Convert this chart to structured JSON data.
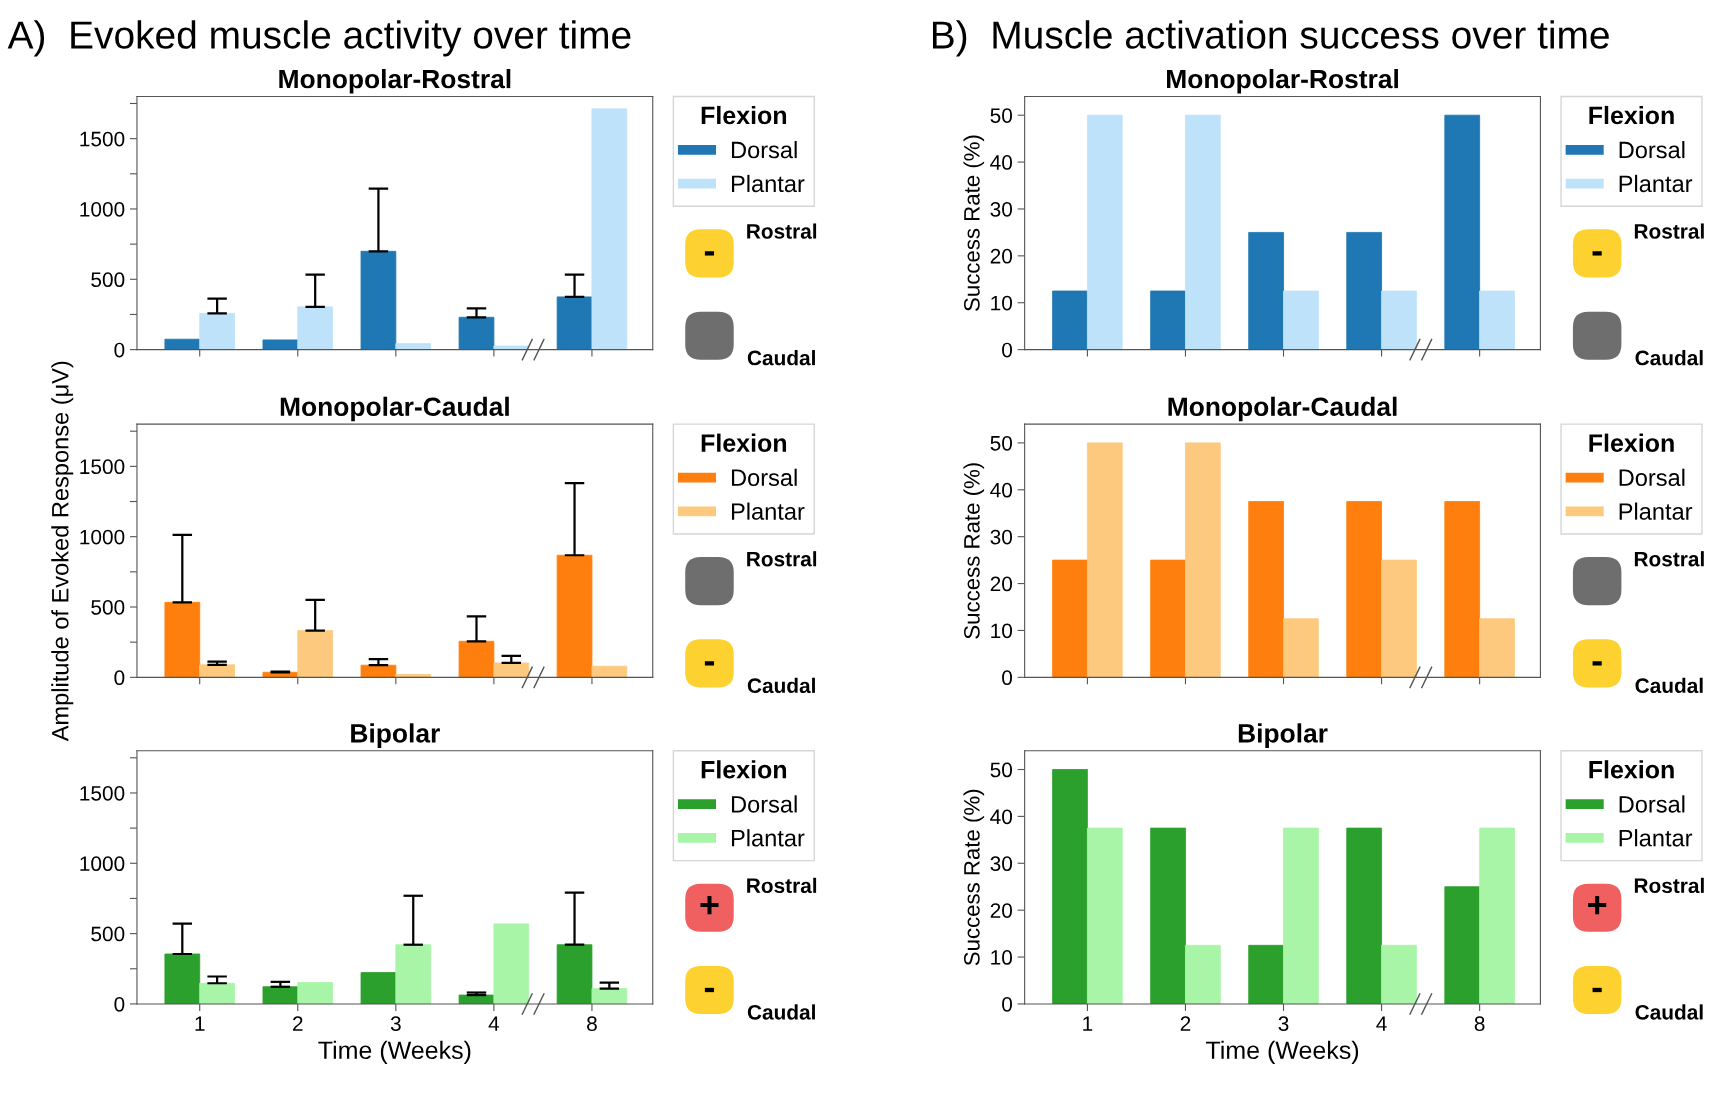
{
  "chart_data": [
    {
      "type": "bar",
      "title": "A)  Evoked muscle activity over time",
      "subtitle": "Monopolar-Rostral",
      "categories": [
        "1",
        "2",
        "3",
        "4",
        "8"
      ],
      "legend_title": "Flexion",
      "legend": "right",
      "tick_labels": "y",
      "ylim": [
        0,
        1800
      ],
      "yticks": [
        0,
        {
          "value": 250,
          "label": null
        },
        500,
        {
          "value": 750,
          "label": null
        },
        1000,
        {
          "value": 1250,
          "label": null
        },
        1500,
        {
          "value": 1750,
          "label": null
        }
      ],
      "series": [
        {
          "name": "Dorsal",
          "color": "#1f77b4",
          "values": [
            74,
            69,
            699,
            230,
            375
          ],
          "errors": [
            null,
            null,
            [
              699,
              1145
            ],
            [
              230,
              293
            ],
            [
              375,
              533
            ]
          ]
        },
        {
          "name": "Plantar",
          "color": "#bfe2fb",
          "values": [
            258,
            304,
            43,
            26,
            1712
          ],
          "errors": [
            [
              258,
              362
            ],
            [
              304,
              533
            ],
            null,
            null,
            null
          ]
        }
      ],
      "annotations": [
        "Rostral",
        "-",
        "Caudal",
        null
      ]
    },
    {
      "type": "bar",
      "title": "Monopolar-Caudal",
      "ylabel": "Amplitude of Evoked Response (μV)",
      "categories": [
        "1",
        "2",
        "3",
        "4",
        "8"
      ],
      "legend_title": "Flexion",
      "legend": "right",
      "tick_labels": "y",
      "ylim": [
        0,
        1800
      ],
      "yticks": [
        0,
        {
          "value": 250,
          "label": null
        },
        500,
        {
          "value": 750,
          "label": null
        },
        1000,
        {
          "value": 1250,
          "label": null
        },
        1500,
        {
          "value": 1750,
          "label": null
        }
      ],
      "series": [
        {
          "name": "Dorsal",
          "color": "#ff7f0e",
          "values": [
            533,
            36,
            86,
            256,
            868
          ],
          "errors": [
            [
              533,
              1013
            ],
            [
              36,
              41
            ],
            [
              86,
              129
            ],
            [
              256,
              434
            ],
            [
              868,
              1381
            ]
          ]
        },
        {
          "name": "Plantar",
          "color": "#fdc97e",
          "values": [
            89,
            332,
            20,
            102,
            79
          ],
          "errors": [
            [
              89,
              112
            ],
            [
              332,
              551
            ],
            null,
            [
              102,
              152
            ],
            null
          ]
        }
      ],
      "annotations": [
        "Rostral",
        null,
        "Caudal",
        "-"
      ]
    },
    {
      "type": "bar",
      "title": "Bipolar",
      "xlabel": "Time (Weeks)",
      "categories": [
        "1",
        "2",
        "3",
        "4",
        "8"
      ],
      "legend_title": "Flexion",
      "legend": "right",
      "ylim": [
        0,
        1800
      ],
      "yticks": [
        0,
        {
          "value": 250,
          "label": null
        },
        500,
        {
          "value": 750,
          "label": null
        },
        1000,
        {
          "value": 1250,
          "label": null
        },
        1500,
        {
          "value": 1750,
          "label": null
        }
      ],
      "series": [
        {
          "name": "Dorsal",
          "color": "#2ca02c",
          "values": [
            355,
            122,
            223,
            63,
            421
          ],
          "errors": [
            [
              355,
              571
            ],
            [
              122,
              157
            ],
            null,
            [
              63,
              81
            ],
            [
              421,
              792
            ]
          ]
        },
        {
          "name": "Plantar",
          "color": "#a8f5a8",
          "values": [
            147,
            152,
            421,
            569,
            109
          ],
          "errors": [
            [
              147,
              195
            ],
            null,
            [
              421,
              769
            ],
            null,
            [
              109,
              152
            ]
          ]
        }
      ],
      "annotations": [
        "Rostral",
        "+",
        "Caudal",
        "-"
      ]
    },
    {
      "type": "bar",
      "title": "B)  Muscle activation success over time",
      "subtitle": "Monopolar-Rostral",
      "ylabel": "Success Rate (%)",
      "categories": [
        "1",
        "2",
        "3",
        "4",
        "8"
      ],
      "legend_title": "Flexion",
      "legend": "right",
      "tick_labels": "y",
      "ylim": [
        0,
        54
      ],
      "yticks": [
        0,
        10,
        20,
        30,
        40,
        50
      ],
      "series": [
        {
          "name": "Dorsal",
          "color": "#1f77b4",
          "values": [
            12.5,
            12.5,
            25,
            25,
            50
          ]
        },
        {
          "name": "Plantar",
          "color": "#bfe2fb",
          "values": [
            50,
            50,
            12.5,
            12.5,
            12.5
          ]
        }
      ],
      "annotations": [
        "Rostral",
        "-",
        "Caudal",
        null
      ]
    },
    {
      "type": "bar",
      "title": "Monopolar-Caudal",
      "ylabel": "Success Rate (%)",
      "categories": [
        "1",
        "2",
        "3",
        "4",
        "8"
      ],
      "legend_title": "Flexion",
      "legend": "right",
      "tick_labels": "y",
      "ylim": [
        0,
        54
      ],
      "yticks": [
        0,
        10,
        20,
        30,
        40,
        50
      ],
      "series": [
        {
          "name": "Dorsal",
          "color": "#ff7f0e",
          "values": [
            25,
            25,
            37.5,
            37.5,
            37.5
          ]
        },
        {
          "name": "Plantar",
          "color": "#fdc97e",
          "values": [
            50,
            50,
            12.5,
            25,
            12.5
          ]
        }
      ],
      "annotations": [
        "Rostral",
        null,
        "Caudal",
        "-"
      ]
    },
    {
      "type": "bar",
      "title": "Bipolar",
      "ylabel": "Success Rate (%)",
      "xlabel": "Time (Weeks)",
      "categories": [
        "1",
        "2",
        "3",
        "4",
        "8"
      ],
      "legend_title": "Flexion",
      "legend": "right",
      "ylim": [
        0,
        54
      ],
      "yticks": [
        0,
        10,
        20,
        30,
        40,
        50
      ],
      "series": [
        {
          "name": "Dorsal",
          "color": "#2ca02c",
          "values": [
            50,
            37.5,
            12.5,
            37.5,
            25
          ]
        },
        {
          "name": "Plantar",
          "color": "#a8f5a8",
          "values": [
            37.5,
            12.5,
            37.5,
            12.5,
            37.5
          ]
        }
      ],
      "annotations": [
        "Rostral",
        "+",
        "Caudal",
        "-"
      ]
    }
  ]
}
